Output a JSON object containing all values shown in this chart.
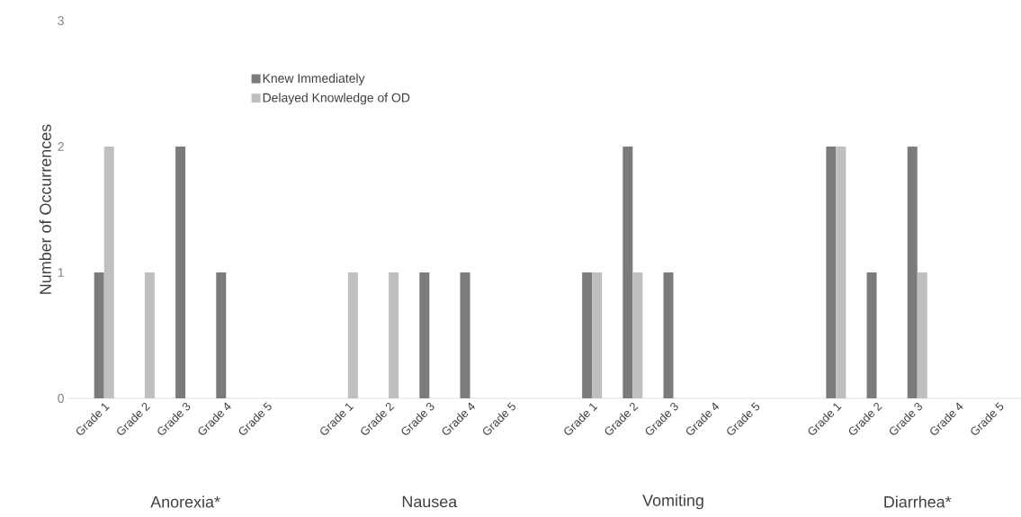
{
  "chart_data": {
    "type": "bar",
    "ylabel": "Number of Occurrences",
    "categories": [
      "Grade 1",
      "Grade 2",
      "Grade 3",
      "Grade 4",
      "Grade 5",
      null,
      "Grade 1",
      "Grade 2",
      "Grade 3",
      "Grade 4",
      "Grade 5",
      null,
      "Grade 1",
      "Grade 2",
      "Grade 3",
      "Grade 4",
      "Grade 5",
      null,
      "Grade 1",
      "Grade 2",
      "Grade 3",
      "Grade 4",
      "Grade 5"
    ],
    "annotations": [
      "Anorexia*",
      "Nausea",
      "Vomiting",
      "Diarrhea*"
    ],
    "series": [
      {
        "name": "Knew Immediately",
        "color": "#7b7b7b",
        "values": [
          1,
          0,
          2,
          1,
          0,
          null,
          0,
          0,
          1,
          1,
          0,
          null,
          1,
          2,
          1,
          0,
          0,
          null,
          2,
          1,
          2,
          0,
          0
        ]
      },
      {
        "name": "Delayed Knowledge of OD",
        "color": "#bfbfbf",
        "values": [
          2,
          1,
          0,
          0,
          0,
          null,
          1,
          1,
          0,
          0,
          0,
          null,
          1,
          1,
          0,
          0,
          0,
          null,
          2,
          0,
          1,
          0,
          0
        ]
      }
    ],
    "ylim": [
      0,
      3
    ],
    "yticks": [
      0,
      1,
      2,
      3
    ],
    "legend": "top left",
    "grid": false
  }
}
